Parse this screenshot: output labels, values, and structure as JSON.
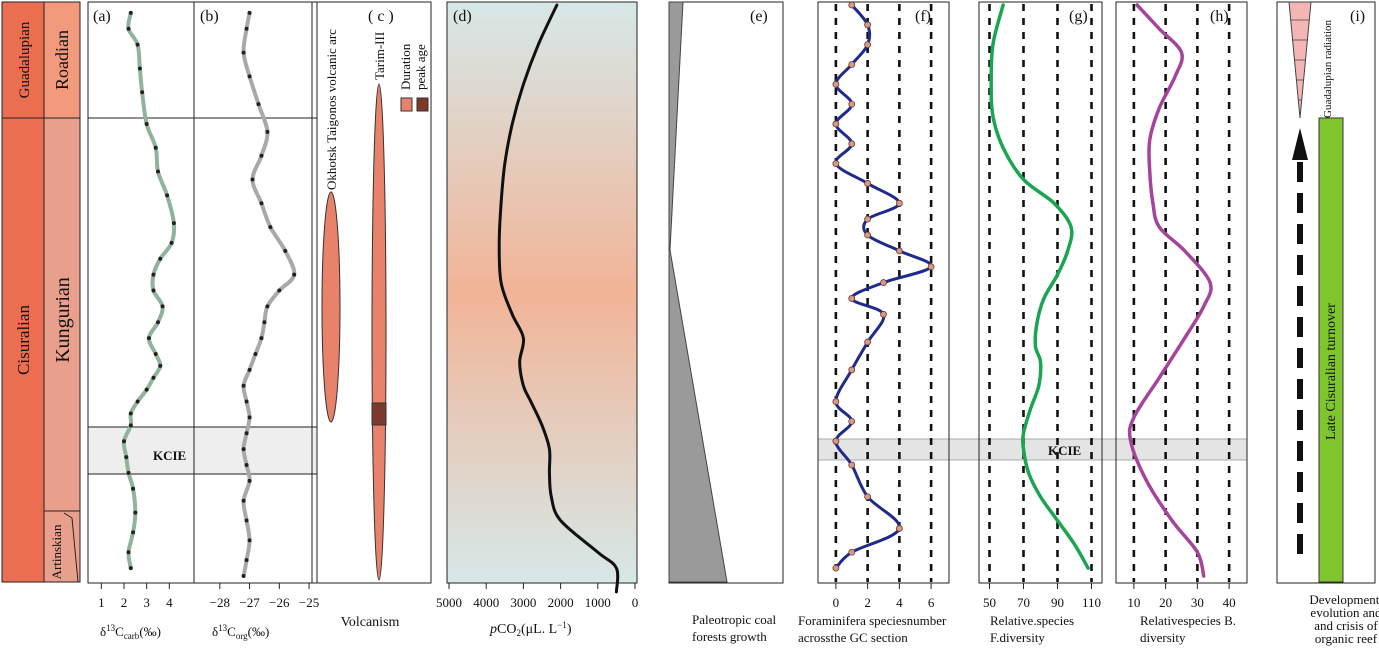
{
  "stratigraphy": {
    "series": [
      "Guadalupian",
      "Cisuralian"
    ],
    "stages": [
      "Roadian",
      "Kungurian",
      "Artinskian"
    ],
    "kcie_label": "KCIE"
  },
  "panels": {
    "a": {
      "label": "(a)",
      "ticks": [
        "1",
        "2",
        "3",
        "4"
      ],
      "xlabel_pre": "δ",
      "xlabel_sup": "13",
      "xlabel_mid": "C",
      "xlabel_sub": "carb",
      "xlabel_post": "(‰)"
    },
    "b": {
      "label": "(b)",
      "ticks": [
        "−28",
        "−27",
        "−26",
        "−25"
      ],
      "xlabel_pre": "δ",
      "xlabel_sup": "13",
      "xlabel_mid": "C",
      "xlabel_sub": "org",
      "xlabel_post": "(‰)"
    },
    "c": {
      "label": "( c )",
      "xlabel": "Volcanism",
      "okhotsk": "Okhotsk Taigonos volcanic arc",
      "tarim": "Tarim-III",
      "legend_duration": "Duration",
      "legend_peak": "peak age",
      "colors": {
        "fill": "#e8826a",
        "peak": "#7b3a2c"
      }
    },
    "d": {
      "label": "(d)",
      "ticks": [
        "5000",
        "4000",
        "3000",
        "2000",
        "1000",
        "0"
      ],
      "xlabel_p": "p",
      "xlabel_co": "CO",
      "xlabel_sub": "2",
      "xlabel_unit": "(μL. L",
      "xlabel_sup": "−1",
      "xlabel_end": ")"
    },
    "e": {
      "label": "(e)",
      "xlabel_1": "Paleotropic coal",
      "xlabel_2": "forests growth"
    },
    "f": {
      "label": "(f)",
      "ticks": [
        "0",
        "2",
        "4",
        "6"
      ],
      "xlabel_1": "Foraminifera speciesnumber",
      "xlabel_2": "acrossthe GC section"
    },
    "g": {
      "label": "(g)",
      "ticks": [
        "50",
        "70",
        "90",
        "110"
      ],
      "kcie_label": "KCIE",
      "xlabel_1": "Relative.species",
      "xlabel_2": "F.diversity"
    },
    "h": {
      "label": "(h)",
      "ticks": [
        "10",
        "20",
        "30",
        "40"
      ],
      "xlabel_1": "Relativespecies B.",
      "xlabel_2": "diversity"
    },
    "i": {
      "label": "(i)",
      "radiation": "Guadalupian radiation",
      "turnover": "Late Cisuralian turnover",
      "xlabel_1": "Development,",
      "xlabel_2": "evolution and",
      "xlabel_3": "and crisis of",
      "xlabel_4": "organic reef"
    }
  },
  "colors": {
    "series_orange": "#ec6e50",
    "stage_roadian": "#f49a7c",
    "stage_kungurian": "#e8a08c",
    "panel_a_curve": "#8fb39c",
    "panel_b_curve": "#a9a9a9",
    "panel_b_dots": "#e8a040",
    "co2_curve": "#111111",
    "coal": "#9a9a9a",
    "foram": "#1f2a8a",
    "f_div": "#1aa651",
    "b_div": "#a4449a",
    "turnover_bar": "#7ec52e",
    "radiation": "#f4b5b5"
  },
  "chart_data": [
    {
      "type": "line",
      "panel": "a",
      "xlim": [
        0.5,
        5.0
      ],
      "xlabel": "δ13Ccarb(‰)",
      "series": [
        {
          "x": [
            2.3,
            2.2,
            2.6,
            2.7,
            2.8,
            3.0,
            3.4,
            3.5,
            3.9,
            4.2,
            4.1,
            3.6,
            3.3,
            3.3,
            3.7,
            3.5,
            3.1,
            3.4,
            3.6,
            3.3,
            3.0,
            2.6,
            2.3,
            2.3,
            2.0,
            2.1,
            2.2,
            2.4,
            2.5,
            2.4,
            2.2,
            2.3
          ],
          "y": [
            0.02,
            0.06,
            0.1,
            0.16,
            0.22,
            0.3,
            0.36,
            0.42,
            0.48,
            0.55,
            0.6,
            0.64,
            0.68,
            0.72,
            0.76,
            0.8,
            0.84,
            0.88,
            0.91,
            0.94,
            0.97,
            1.0,
            1.03,
            1.06,
            1.1,
            1.14,
            1.18,
            1.22,
            1.28,
            1.33,
            1.38,
            1.42
          ]
        }
      ]
    },
    {
      "type": "line",
      "panel": "b",
      "xlim": [
        -28.8,
        -24.8
      ],
      "xlabel": "δ13Corg(‰)",
      "series": [
        {
          "x": [
            -27.0,
            -27.1,
            -27.2,
            -27.0,
            -26.7,
            -26.4,
            -26.6,
            -26.9,
            -26.6,
            -26.3,
            -25.8,
            -25.5,
            -26.0,
            -26.4,
            -26.5,
            -26.6,
            -26.8,
            -27.0,
            -27.2,
            -27.1,
            -27.0,
            -27.1,
            -27.2,
            -27.1,
            -27.0,
            -27.2,
            -27.1,
            -27.0,
            -27.1,
            -27.2
          ],
          "y": [
            0.02,
            0.06,
            0.12,
            0.18,
            0.25,
            0.32,
            0.38,
            0.44,
            0.5,
            0.56,
            0.62,
            0.68,
            0.72,
            0.76,
            0.8,
            0.84,
            0.88,
            0.92,
            0.96,
            1.0,
            1.04,
            1.08,
            1.12,
            1.16,
            1.2,
            1.25,
            1.3,
            1.35,
            1.4,
            1.44
          ]
        }
      ]
    },
    {
      "type": "line",
      "panel": "d",
      "xlim": [
        5000,
        0
      ],
      "xlabel": "pCO2(μL. L−1)",
      "series": [
        {
          "x": [
            2100,
            2600,
            3000,
            3300,
            3500,
            3600,
            3650,
            3600,
            3300,
            3000,
            3100,
            3000,
            2800,
            2500,
            2300,
            2300,
            2250,
            2000,
            1000,
            500,
            500
          ],
          "y": [
            0.0,
            0.1,
            0.2,
            0.3,
            0.4,
            0.5,
            0.6,
            0.7,
            0.78,
            0.84,
            0.9,
            0.96,
            1.0,
            1.06,
            1.12,
            1.18,
            1.24,
            1.3,
            1.38,
            1.42,
            1.48
          ]
        }
      ]
    },
    {
      "type": "line",
      "panel": "f",
      "xlim": [
        -1,
        7
      ],
      "xlabel": "Foraminifera speciesnumber",
      "series": [
        {
          "x": [
            1,
            2,
            2,
            1,
            0,
            1,
            0,
            1,
            0,
            2,
            4,
            2,
            2,
            4,
            6,
            3,
            1,
            3,
            2,
            1,
            0,
            1,
            0,
            1,
            2,
            4,
            1,
            0
          ],
          "y": [
            0.0,
            0.05,
            0.1,
            0.15,
            0.2,
            0.25,
            0.3,
            0.35,
            0.4,
            0.45,
            0.5,
            0.54,
            0.58,
            0.62,
            0.66,
            0.7,
            0.74,
            0.78,
            0.85,
            0.92,
            1.0,
            1.05,
            1.1,
            1.16,
            1.24,
            1.32,
            1.38,
            1.42
          ]
        }
      ]
    },
    {
      "type": "line",
      "panel": "g",
      "xlim": [
        45,
        115
      ],
      "xlabel": "Relative.species F.diversity",
      "series": [
        {
          "x": [
            58,
            52,
            51,
            52,
            58,
            70,
            88,
            98,
            96,
            90,
            82,
            78,
            77,
            80,
            79,
            74,
            70,
            70,
            73,
            80,
            90,
            100,
            108
          ],
          "y": [
            0.0,
            0.1,
            0.2,
            0.28,
            0.36,
            0.44,
            0.5,
            0.56,
            0.62,
            0.68,
            0.74,
            0.8,
            0.86,
            0.9,
            0.96,
            1.02,
            1.08,
            1.12,
            1.18,
            1.24,
            1.3,
            1.36,
            1.42
          ]
        }
      ]
    },
    {
      "type": "line",
      "panel": "h",
      "xlim": [
        5,
        45
      ],
      "xlabel": "Relativespecies B. diversity",
      "series": [
        {
          "x": [
            11,
            18,
            25,
            23,
            18,
            15,
            15,
            16,
            18,
            26,
            34,
            32,
            26,
            18,
            10,
            9,
            14,
            22,
            30,
            32
          ],
          "y": [
            0.0,
            0.06,
            0.12,
            0.18,
            0.26,
            0.34,
            0.42,
            0.5,
            0.56,
            0.62,
            0.7,
            0.76,
            0.84,
            0.94,
            1.04,
            1.1,
            1.2,
            1.3,
            1.38,
            1.44
          ]
        }
      ]
    }
  ]
}
